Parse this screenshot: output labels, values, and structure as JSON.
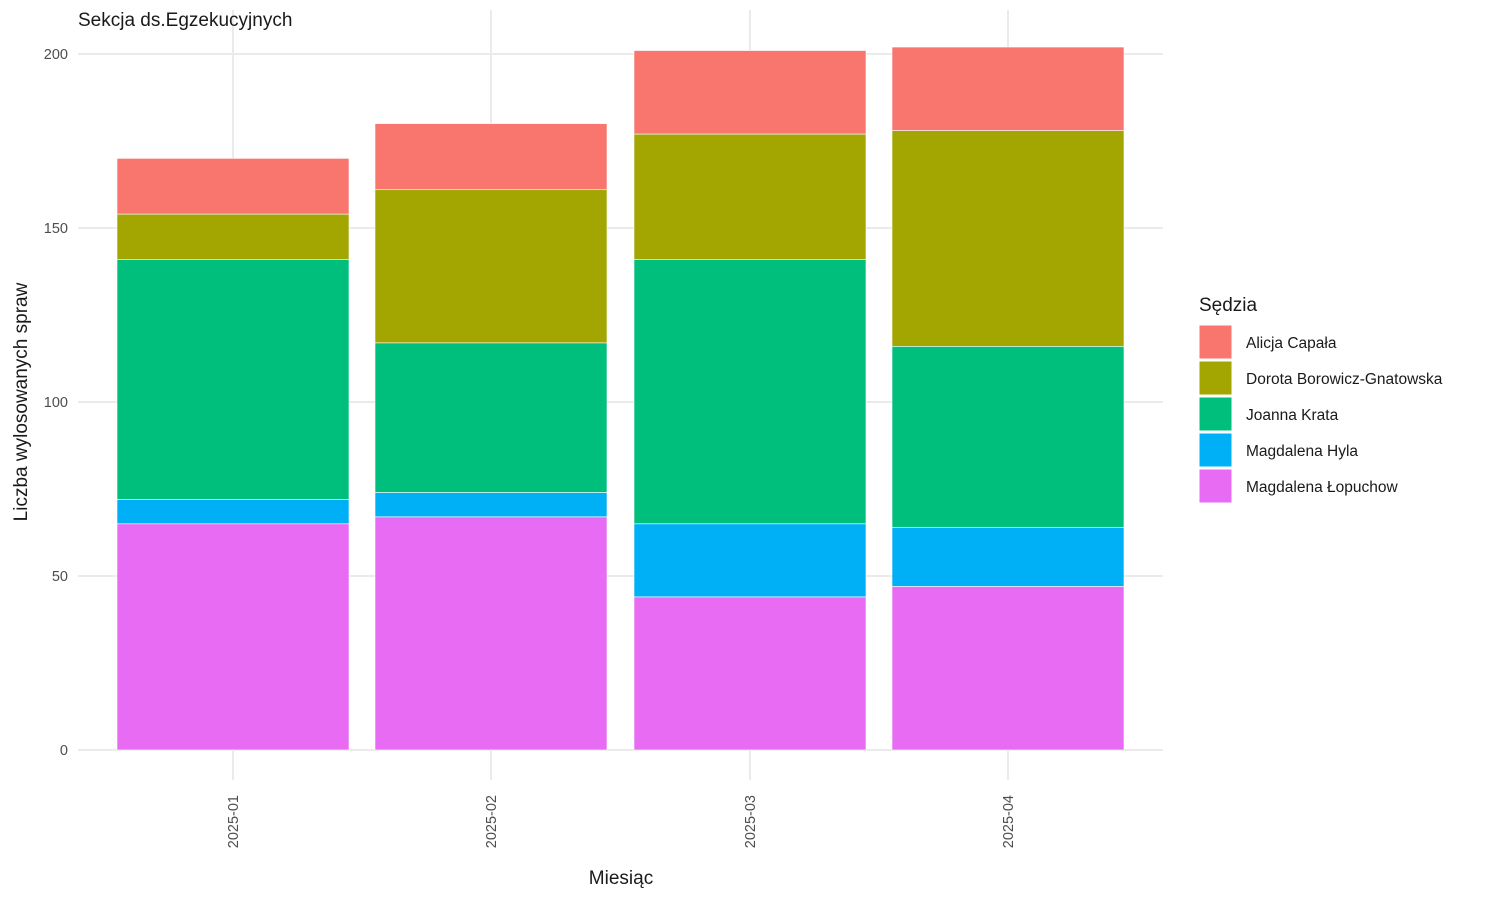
{
  "chart_data": {
    "type": "bar",
    "stacked": true,
    "title": "Sekcja ds.Egzekucyjnych",
    "xlabel": "Miesiąc",
    "ylabel": "Liczba wylosowanych spraw",
    "categories": [
      "2025-01",
      "2025-02",
      "2025-03",
      "2025-04"
    ],
    "ylim": [
      0,
      210
    ],
    "yticks": [
      0,
      50,
      100,
      150,
      200
    ],
    "grid": true,
    "legend": {
      "title": "Sędzia",
      "position": "right"
    },
    "series": [
      {
        "name": "Magdalena Łopuchow",
        "color": "#E76BF3",
        "values": [
          65,
          67,
          44,
          47
        ]
      },
      {
        "name": "Magdalena Hyla",
        "color": "#00B0F6",
        "values": [
          7,
          7,
          21,
          17
        ]
      },
      {
        "name": "Joanna Krata",
        "color": "#00BF7D",
        "values": [
          69,
          43,
          76,
          52
        ]
      },
      {
        "name": "Dorota Borowicz-Gnatowska",
        "color": "#A3A500",
        "values": [
          13,
          44,
          36,
          62
        ]
      },
      {
        "name": "Alicja Capała",
        "color": "#F8766D",
        "values": [
          16,
          19,
          24,
          24
        ]
      }
    ],
    "legend_order": [
      "Alicja Capała",
      "Dorota Borowicz-Gnatowska",
      "Joanna Krata",
      "Magdalena Hyla",
      "Magdalena Łopuchow"
    ]
  }
}
